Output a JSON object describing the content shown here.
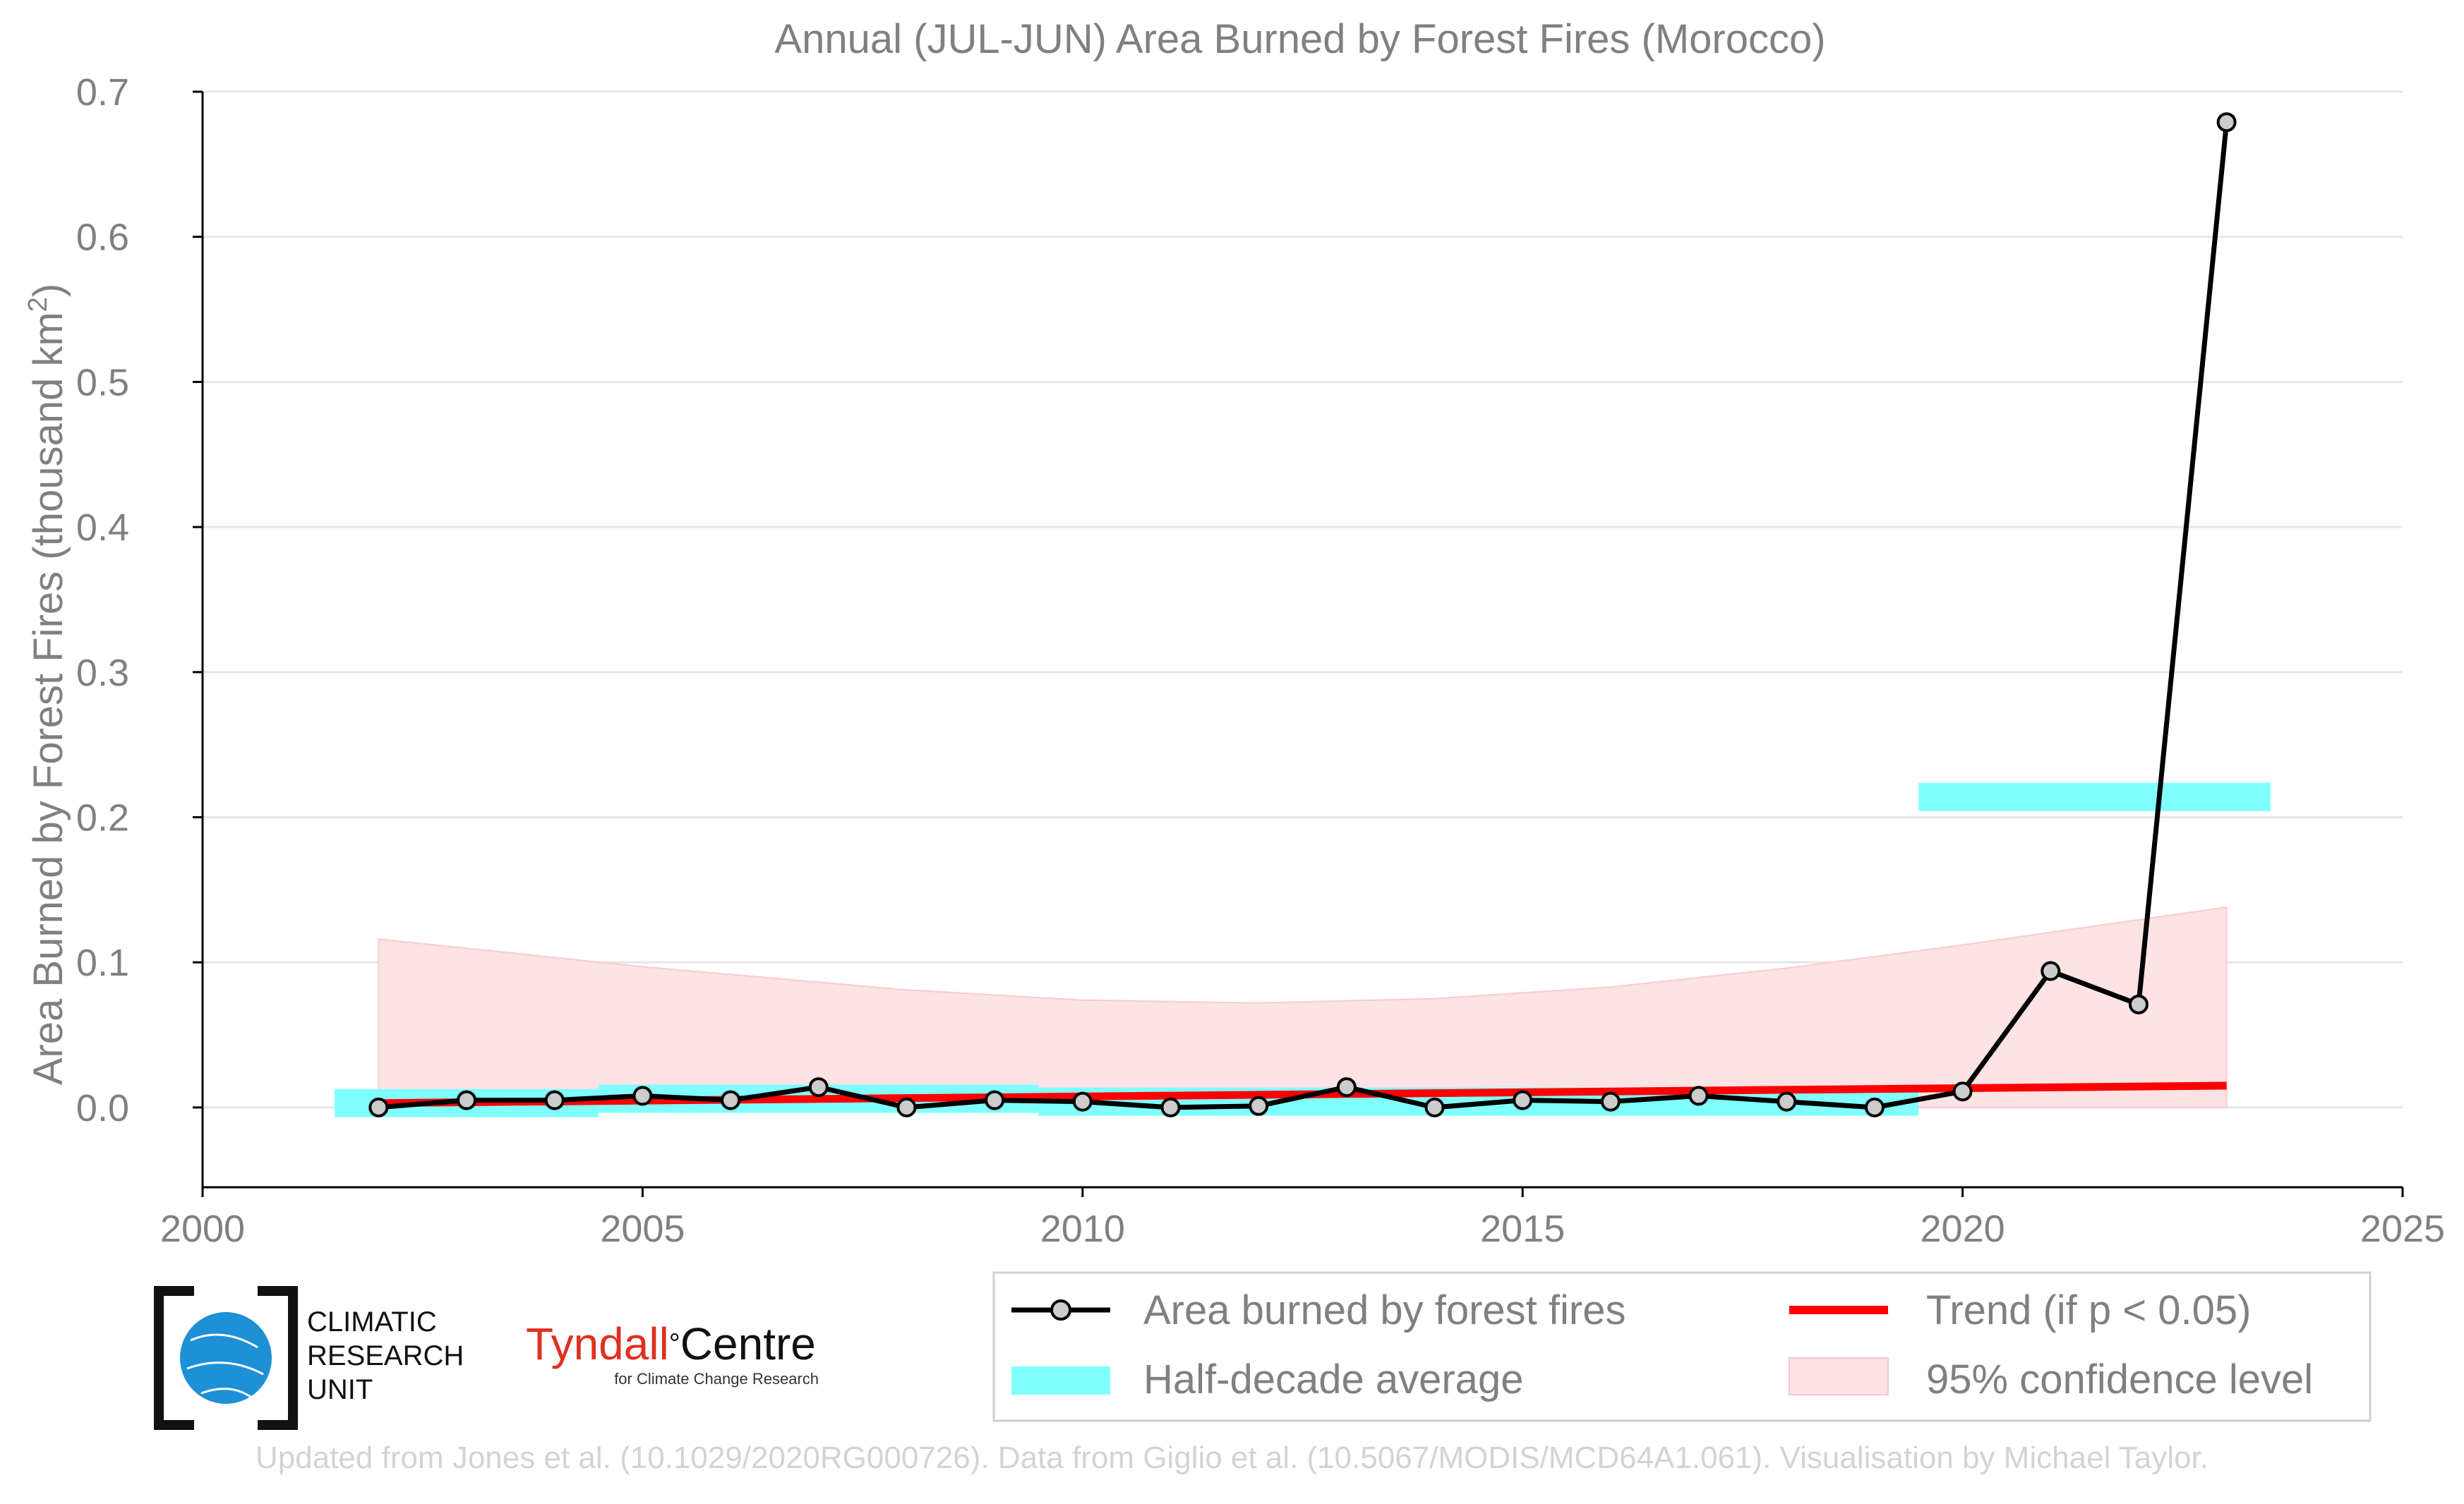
{
  "chart_data": {
    "type": "line",
    "title": "Annual (JUL-JUN) Area Burned by Forest Fires (Morocco)",
    "ylabel": "Area Burned by Forest Fires (thousand km²)",
    "xlabel": "",
    "xlim": [
      2000,
      2025
    ],
    "ylim": [
      -0.055,
      0.7
    ],
    "x_ticks": [
      "2000",
      "2005",
      "2010",
      "2015",
      "2020",
      "2025"
    ],
    "y_ticks": [
      "0.0",
      "0.1",
      "0.2",
      "0.3",
      "0.4",
      "0.5",
      "0.6",
      "0.7"
    ],
    "grid": "horizontal",
    "series": [
      {
        "name": "Area burned by forest fires",
        "x": [
          2002,
          2003,
          2004,
          2005,
          2006,
          2007,
          2008,
          2009,
          2010,
          2011,
          2012,
          2013,
          2014,
          2015,
          2016,
          2017,
          2018,
          2019,
          2020,
          2021,
          2022,
          2023
        ],
        "values": [
          0.0,
          0.005,
          0.005,
          0.008,
          0.005,
          0.014,
          0.0,
          0.005,
          0.004,
          0.0,
          0.001,
          0.014,
          0.0,
          0.005,
          0.004,
          0.008,
          0.004,
          0.0,
          0.011,
          0.094,
          0.071,
          0.679
        ]
      },
      {
        "name": "Trend (if p < 0.05)",
        "x": [
          2002,
          2023
        ],
        "values": [
          0.003,
          0.015
        ]
      }
    ],
    "half_decade_average": {
      "name": "Half-decade average",
      "periods": [
        {
          "x": [
            2001.5,
            2004.5
          ],
          "value": 0.003
        },
        {
          "x": [
            2004.5,
            2009.5
          ],
          "value": 0.006
        },
        {
          "x": [
            2009.5,
            2014.5
          ],
          "value": 0.004
        },
        {
          "x": [
            2014.5,
            2019.5
          ],
          "value": 0.004
        },
        {
          "x": [
            2019.5,
            2023.5
          ],
          "value": 0.214
        }
      ]
    },
    "confidence_band": {
      "name": "95% confidence level",
      "x": [
        2002,
        2005,
        2008,
        2010,
        2012,
        2014,
        2016,
        2018,
        2020,
        2023
      ],
      "upper": [
        0.116,
        0.097,
        0.081,
        0.074,
        0.072,
        0.075,
        0.083,
        0.096,
        0.112,
        0.138
      ],
      "lower": [
        0.0,
        0.0,
        0.0,
        0.0,
        0.0,
        0.0,
        0.0,
        0.0,
        0.0,
        0.0
      ]
    },
    "legend_position": "bottom-right",
    "colors": {
      "line": "#000000",
      "marker_fill": "#cccccc",
      "trend": "#ff0000",
      "half_decade": "#80ffff",
      "confidence": "#fde3e3",
      "text": "#808080",
      "grid": "#e6e6e6"
    }
  },
  "logos": {
    "cru": "CLIMATIC RESEARCH UNIT",
    "tyndall_main_1": "Tyndall",
    "tyndall_degree": "°",
    "tyndall_main_2": "Centre",
    "tyndall_sub": "for Climate Change Research"
  },
  "footer": "Updated from Jones et al. (10.1029/2020RG000726). Data from Giglio et al. (10.5067/MODIS/MCD64A1.061). Visualisation by Michael Taylor."
}
